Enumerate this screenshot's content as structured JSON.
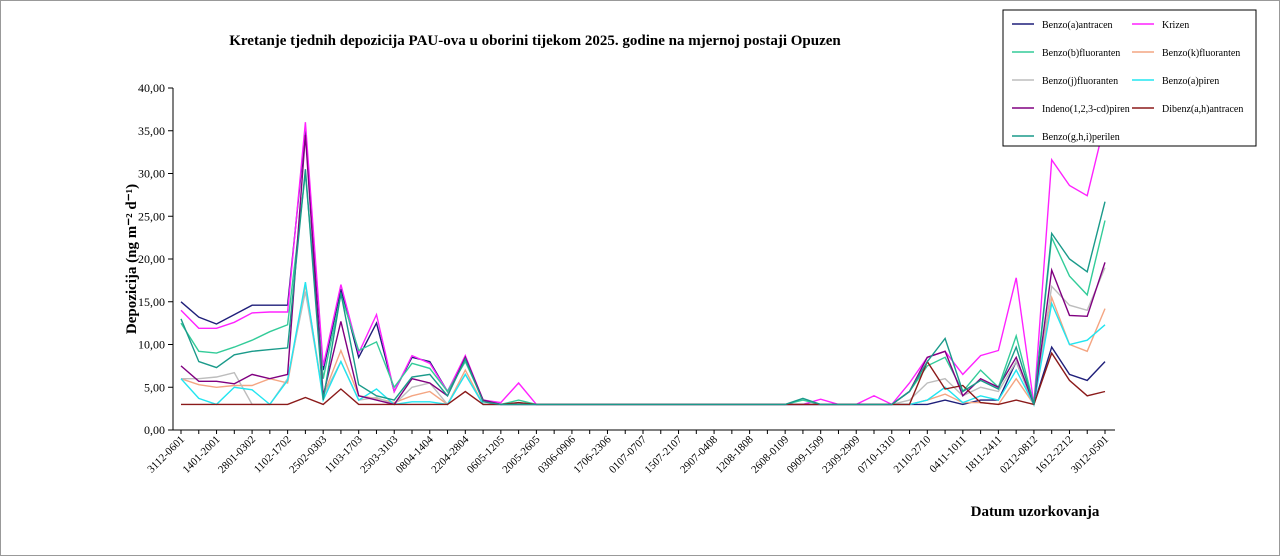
{
  "chart_data": {
    "type": "line",
    "title": "Kretanje tjednih depozicija PAU-ova u oborini tijekom 2025. godine na mjernoj postaji Opuzen",
    "y_label": "Depozicija (ng m⁻² d⁻¹)",
    "x_label": "Datum uzorkovanja",
    "categories": [
      "3112-0601",
      null,
      "1401-2001",
      null,
      "2801-0302",
      null,
      "1102-1702",
      null,
      "2502-0303",
      null,
      "1103-1703",
      null,
      "2503-3103",
      null,
      "0804-1404",
      null,
      "2204-2804",
      null,
      "0605-1205",
      null,
      "2005-2605",
      null,
      "0306-0906",
      null,
      "1706-2306",
      null,
      "0107-0707",
      null,
      "1507-2107",
      null,
      "2907-0408",
      null,
      "1208-1808",
      null,
      "2608-0109",
      null,
      "0909-1509",
      null,
      "2309-2909",
      null,
      "0710-1310",
      null,
      "2110-2710",
      null,
      "0411-1011",
      null,
      "1811-2411",
      null,
      "0212-0812",
      null,
      "1612-2212",
      null,
      "3012-0501"
    ],
    "ylim": [
      0,
      40
    ],
    "yticks": [
      {
        "value": 0,
        "label": "0,00"
      },
      {
        "value": 5,
        "label": "5,00"
      },
      {
        "value": 10,
        "label": "10,00"
      },
      {
        "value": 15,
        "label": "15,00"
      },
      {
        "value": 20,
        "label": "20,00"
      },
      {
        "value": 25,
        "label": "25,00"
      },
      {
        "value": 30,
        "label": "30,00"
      },
      {
        "value": 35,
        "label": "35,00"
      },
      {
        "value": 40,
        "label": "40,00"
      }
    ],
    "legend": "top-right",
    "series": [
      {
        "name": "Benzo(a)antracen",
        "color": "#1f1f7a",
        "values": [
          15,
          13.2,
          12.4,
          13.5,
          14.6,
          14.6,
          14.6,
          35,
          7,
          16.5,
          8.5,
          12.5,
          4.5,
          8.5,
          8,
          4.5,
          8.5,
          3.5,
          3,
          3,
          3,
          3,
          3,
          3,
          3,
          3,
          3,
          3,
          3,
          3,
          3,
          3,
          3,
          3,
          3,
          3,
          3,
          3,
          3,
          3,
          3,
          3,
          3,
          3.5,
          3,
          3.5,
          3.5,
          8,
          3,
          9.7,
          6.5,
          5.8,
          8
        ]
      },
      {
        "name": "Krizen",
        "color": "#ff22ff",
        "values": [
          14,
          11.9,
          11.9,
          12.6,
          13.7,
          13.8,
          13.8,
          36,
          7.5,
          17,
          9,
          13.5,
          4.5,
          8.7,
          7.8,
          4.5,
          8.7,
          3.5,
          3.2,
          5.5,
          3,
          3,
          3,
          3,
          3,
          3,
          3,
          3,
          3,
          3,
          3,
          3,
          3,
          3,
          3,
          3,
          3.6,
          3,
          3,
          4,
          3,
          5.5,
          8.5,
          9.2,
          6.5,
          8.7,
          9.3,
          17.8,
          3,
          31.6,
          28.6,
          27.4,
          36
        ]
      },
      {
        "name": "Benzo(b)fluoranten",
        "color": "#33cc99",
        "values": [
          12.5,
          9.2,
          9,
          9.7,
          10.5,
          11.5,
          12.3,
          30,
          6,
          15.8,
          9.3,
          10.3,
          5,
          7.8,
          7.2,
          4.5,
          8,
          3.5,
          3,
          3.5,
          3,
          3,
          3,
          3,
          3,
          3,
          3,
          3,
          3,
          3,
          3,
          3,
          3,
          3,
          3,
          3.5,
          3,
          3,
          3,
          3,
          3,
          4.5,
          7.5,
          8.5,
          4.5,
          7,
          5,
          11,
          3,
          22.5,
          18,
          15.8,
          24.5
        ]
      },
      {
        "name": "Benzo(k)fluoranten",
        "color": "#f4a582",
        "values": [
          6,
          5.3,
          5,
          5.2,
          5.2,
          6,
          5.5,
          17,
          4,
          9.3,
          4,
          3.7,
          3.2,
          4,
          4.5,
          3,
          7,
          3,
          3,
          3,
          3,
          3,
          3,
          3,
          3,
          3,
          3,
          3,
          3,
          3,
          3,
          3,
          3,
          3,
          3,
          3,
          3,
          3,
          3,
          3,
          3,
          3,
          3.5,
          4.2,
          3.2,
          3.2,
          3,
          6,
          3,
          15.5,
          10,
          9.2,
          14.2
        ]
      },
      {
        "name": "Benzo(j)fluoranten",
        "color": "#bdbdbd",
        "values": [
          6,
          6,
          6.2,
          6.7,
          3,
          3,
          6,
          16.2,
          4,
          8,
          3.5,
          3.8,
          3,
          5,
          5.5,
          3,
          6.5,
          3,
          3,
          3,
          3,
          3,
          3,
          3,
          3,
          3,
          3,
          3,
          3,
          3,
          3,
          3,
          3,
          3,
          3,
          3,
          3,
          3,
          3,
          3,
          3,
          3.5,
          5.5,
          6,
          4,
          5,
          4.5,
          8,
          3,
          16.8,
          14.6,
          14,
          19
        ]
      },
      {
        "name": "Benzo(a)piren",
        "color": "#22e5f0",
        "values": [
          6,
          3.7,
          3,
          5,
          4.7,
          3,
          5.8,
          17.3,
          3.5,
          8,
          3.5,
          4.8,
          3,
          3.3,
          3.3,
          3,
          6.5,
          3,
          3,
          3,
          3,
          3,
          3,
          3,
          3,
          3,
          3,
          3,
          3,
          3,
          3,
          3,
          3,
          3,
          3,
          3,
          3,
          3,
          3,
          3,
          3,
          3,
          3.5,
          5,
          3.2,
          4,
          3.5,
          7,
          3,
          14.8,
          10,
          10.5,
          12.3
        ]
      },
      {
        "name": "Indeno(1,2,3-cd)piren",
        "color": "#800080",
        "values": [
          7.5,
          5.7,
          5.7,
          5.4,
          6.5,
          6,
          6.5,
          34.5,
          4,
          12.7,
          4,
          3.5,
          3,
          6,
          5.5,
          4,
          8.5,
          3.5,
          3,
          3,
          3,
          3,
          3,
          3,
          3,
          3,
          3,
          3,
          3,
          3,
          3,
          3,
          3,
          3,
          3,
          3,
          3,
          3,
          3,
          3,
          3,
          4.5,
          8.5,
          9.2,
          4,
          6,
          5,
          8.5,
          3,
          18.7,
          13.4,
          13.3,
          19.6
        ]
      },
      {
        "name": "Dibenz(a,h)antracen",
        "color": "#8b1a1a",
        "values": [
          3,
          3,
          3,
          3,
          3,
          3,
          3,
          3.8,
          3,
          4.8,
          3,
          3,
          3,
          3,
          3,
          3,
          4.5,
          3,
          3,
          3.2,
          3,
          3,
          3,
          3,
          3,
          3,
          3,
          3,
          3,
          3,
          3,
          3,
          3,
          3,
          3,
          3,
          3,
          3,
          3,
          3,
          3,
          3,
          8,
          4.8,
          5.2,
          3.2,
          3,
          3.5,
          3,
          9,
          5.8,
          4,
          4.5
        ]
      },
      {
        "name": "Benzo(g,h,i)perilen",
        "color": "#1a9a8a",
        "values": [
          13,
          8,
          7.3,
          8.8,
          9.2,
          9.4,
          9.6,
          30.5,
          3.5,
          16,
          5.3,
          4,
          3.5,
          6.2,
          6.5,
          4,
          8.3,
          3.3,
          3,
          3,
          3,
          3,
          3,
          3,
          3,
          3,
          3,
          3,
          3,
          3,
          3,
          3,
          3,
          3,
          3,
          3.7,
          3,
          3,
          3,
          3,
          3,
          4.5,
          8,
          10.7,
          4.5,
          5.8,
          4.8,
          9.7,
          3,
          23,
          20,
          18.5,
          26.7
        ]
      }
    ]
  }
}
